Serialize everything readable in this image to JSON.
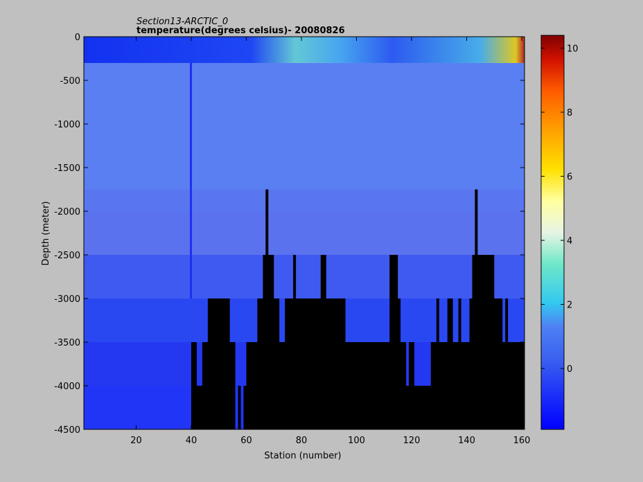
{
  "chart_data": {
    "type": "heatmap",
    "title": "Section13-ARCTIC_0",
    "subtitle": "temperature(degrees  celsius)- 20080826",
    "xlabel": "Station (number)",
    "ylabel": "Depth (meter)",
    "xlim": [
      1,
      161
    ],
    "ylim": [
      -4500,
      0
    ],
    "x_ticks": [
      20,
      40,
      60,
      80,
      100,
      120,
      140,
      160
    ],
    "y_ticks": [
      0,
      -500,
      -1000,
      -1500,
      -2000,
      -2500,
      -3000,
      -3500,
      -4000,
      -4500
    ],
    "colorbar": {
      "range": [
        -1.9,
        10.4
      ],
      "ticks": [
        0,
        2,
        4,
        6,
        8,
        10
      ],
      "colormap": "jet"
    },
    "layers": [
      {
        "depth_top": 0,
        "depth_bottom": -300,
        "description_values": "surface band"
      },
      {
        "depth_top": -300,
        "depth_bottom": -1750
      },
      {
        "depth_top": -1750,
        "depth_bottom": -2000
      },
      {
        "depth_top": -2000,
        "depth_bottom": -2500
      },
      {
        "depth_top": -2500,
        "depth_bottom": -3000
      },
      {
        "depth_top": -3000,
        "depth_bottom": -3500
      },
      {
        "depth_top": -3500,
        "depth_bottom": -4000
      },
      {
        "depth_top": -4000,
        "depth_bottom": -4500
      }
    ],
    "bottom_mask": [
      [
        1,
        -4500
      ],
      [
        40,
        -4500
      ],
      [
        40,
        -3500
      ],
      [
        42,
        -3500
      ],
      [
        42,
        -4000
      ],
      [
        44,
        -4000
      ],
      [
        44,
        -3500
      ],
      [
        46,
        -3500
      ],
      [
        46,
        -3000
      ],
      [
        54,
        -3000
      ],
      [
        54,
        -3500
      ],
      [
        56,
        -3500
      ],
      [
        56,
        -4500
      ],
      [
        57,
        -4500
      ],
      [
        57,
        -4000
      ],
      [
        58,
        -4000
      ],
      [
        58,
        -4500
      ],
      [
        59,
        -4500
      ],
      [
        59,
        -4000
      ],
      [
        60,
        -4000
      ],
      [
        60,
        -3500
      ],
      [
        64,
        -3500
      ],
      [
        64,
        -3000
      ],
      [
        66,
        -3000
      ],
      [
        66,
        -2500
      ],
      [
        67,
        -2500
      ],
      [
        67,
        -1750
      ],
      [
        68,
        -1750
      ],
      [
        68,
        -2500
      ],
      [
        70,
        -2500
      ],
      [
        70,
        -3000
      ],
      [
        72,
        -3000
      ],
      [
        72,
        -3500
      ],
      [
        74,
        -3500
      ],
      [
        74,
        -3000
      ],
      [
        77,
        -3000
      ],
      [
        77,
        -2500
      ],
      [
        78,
        -2500
      ],
      [
        78,
        -3000
      ],
      [
        87,
        -3000
      ],
      [
        87,
        -2500
      ],
      [
        89,
        -2500
      ],
      [
        89,
        -3000
      ],
      [
        96,
        -3000
      ],
      [
        96,
        -3500
      ],
      [
        112,
        -3500
      ],
      [
        112,
        -2500
      ],
      [
        115,
        -2500
      ],
      [
        115,
        -3000
      ],
      [
        116,
        -3000
      ],
      [
        116,
        -3500
      ],
      [
        118,
        -3500
      ],
      [
        118,
        -4000
      ],
      [
        119,
        -4000
      ],
      [
        119,
        -3500
      ],
      [
        121,
        -3500
      ],
      [
        121,
        -4000
      ],
      [
        127,
        -4000
      ],
      [
        127,
        -3500
      ],
      [
        129,
        -3500
      ],
      [
        129,
        -3000
      ],
      [
        130,
        -3000
      ],
      [
        130,
        -3500
      ],
      [
        133,
        -3500
      ],
      [
        133,
        -3000
      ],
      [
        135,
        -3000
      ],
      [
        135,
        -3500
      ],
      [
        137,
        -3500
      ],
      [
        137,
        -3000
      ],
      [
        138,
        -3000
      ],
      [
        138,
        -3500
      ],
      [
        141,
        -3500
      ],
      [
        141,
        -3000
      ],
      [
        142,
        -3000
      ],
      [
        142,
        -2500
      ],
      [
        143,
        -2500
      ],
      [
        143,
        -1750
      ],
      [
        144,
        -1750
      ],
      [
        144,
        -2500
      ],
      [
        150,
        -2500
      ],
      [
        150,
        -3000
      ],
      [
        153,
        -3000
      ],
      [
        153,
        -3500
      ],
      [
        154,
        -3500
      ],
      [
        154,
        -3000
      ],
      [
        155,
        -3000
      ],
      [
        155,
        -3500
      ],
      [
        161,
        -3500
      ],
      [
        161,
        -4500
      ]
    ]
  }
}
